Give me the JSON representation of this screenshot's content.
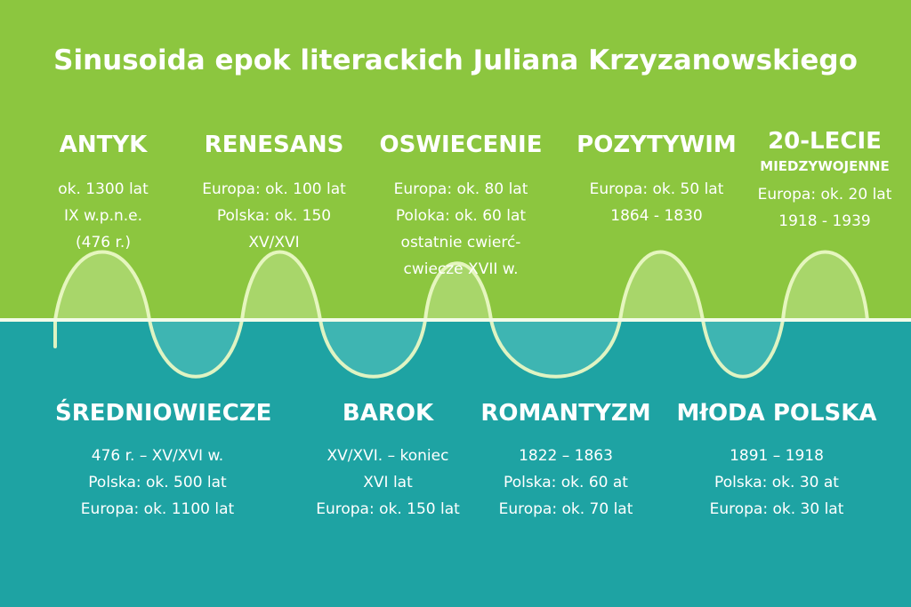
{
  "title": "Sinusoida epok literackich Juliana Krzyzanowskiego",
  "colors": {
    "top": "#8cc63f",
    "bottom": "#1ea3a3",
    "line": "#f2fbe8",
    "wave": "#e9f8c4"
  },
  "epochs_top": [
    {
      "name": "ANTYK",
      "lines": [
        "ok. 1300 lat",
        "IX w.p.n.e.",
        "(476 r.)"
      ]
    },
    {
      "name": "RENESANS",
      "lines": [
        "Europa: ok. 100 lat",
        "Polska: ok. 150",
        "XV/XVI"
      ]
    },
    {
      "name": "OSWIECENIE",
      "lines": [
        "Europa: ok. 80 lat",
        "Poloka: ok. 60 lat",
        "ostatnie cwierć-",
        "cwiecze XVII w."
      ]
    },
    {
      "name": "POZYTYWIM",
      "lines": [
        "Europa: ok. 50 lat",
        "1864 - 1830"
      ]
    },
    {
      "name": "20-LECIE",
      "subtitle": "MIEDZYWOJENNE",
      "lines": [
        "Europa: ok. 20 lat",
        "1918 - 1939"
      ]
    }
  ],
  "epochs_bottom": [
    {
      "name": "ŚREDNIOWIECZE",
      "lines": [
        "476 r. – XV/XVI w.",
        "Polska: ok. 500 lat",
        "Europa: ok. 1100 lat"
      ]
    },
    {
      "name": "BAROK",
      "lines": [
        "XV/XVI. – koniec",
        "XVI lat",
        "Europa: ok. 150 lat"
      ]
    },
    {
      "name": "ROMANTYZM",
      "lines": [
        "1822 – 1863",
        "Polska: ok. 60 at",
        "Europa: ok. 70 lat"
      ]
    },
    {
      "name": "MłODA POLSKA",
      "lines": [
        "1891 – 1918",
        "Polska: ok. 30 at",
        "Europa: ok. 30 lat"
      ]
    }
  ]
}
